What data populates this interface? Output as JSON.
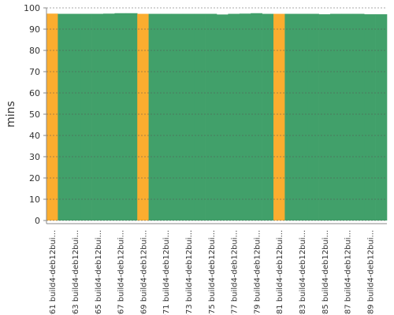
{
  "chart_data": {
    "type": "area",
    "y_label": "mins",
    "categories": [
      "#61 build4-deb12bui...",
      null,
      "#63 build4-deb12bui...",
      null,
      "#65 build4-deb12bui...",
      null,
      "#67 build4-deb12bui...",
      null,
      "#69 build4-deb12bui...",
      null,
      "#71 build4-deb12bui...",
      null,
      "#73 build4-deb12bui...",
      null,
      "#75 build4-deb12bui...",
      null,
      "#77 build4-deb12bui...",
      null,
      "#79 build4-deb12bui...",
      null,
      "#81 build4-deb12bui...",
      null,
      "#83 build4-deb12bui...",
      null,
      "#85 build4-deb12bui...",
      null,
      "#87 build4-deb12bui...",
      null,
      "#89 build4-deb12bui...",
      null
    ],
    "values": [
      97.3,
      97.2,
      97.2,
      97.2,
      97.2,
      97.3,
      97.5,
      97.5,
      97.2,
      97.2,
      97.2,
      97.2,
      97.2,
      97.2,
      97.2,
      96.9,
      97.2,
      97.3,
      97.5,
      97.2,
      97.2,
      97.2,
      97.2,
      97.2,
      97.0,
      97.2,
      97.2,
      97.2,
      97.0,
      97.0
    ],
    "colors": [
      "#fbad2f",
      "#41a06a",
      "#41a06a",
      "#41a06a",
      "#41a06a",
      "#41a06a",
      "#41a06a",
      "#41a06a",
      "#fbad2f",
      "#41a06a",
      "#41a06a",
      "#41a06a",
      "#41a06a",
      "#41a06a",
      "#41a06a",
      "#41a06a",
      "#41a06a",
      "#41a06a",
      "#41a06a",
      "#41a06a",
      "#fbad2f",
      "#41a06a",
      "#41a06a",
      "#41a06a",
      "#41a06a",
      "#41a06a",
      "#41a06a",
      "#41a06a",
      "#41a06a",
      "#41a06a"
    ],
    "ylim": [
      0,
      100
    ],
    "yticks": [
      0,
      10,
      20,
      30,
      40,
      50,
      60,
      70,
      80,
      90,
      100
    ],
    "grid": true
  }
}
